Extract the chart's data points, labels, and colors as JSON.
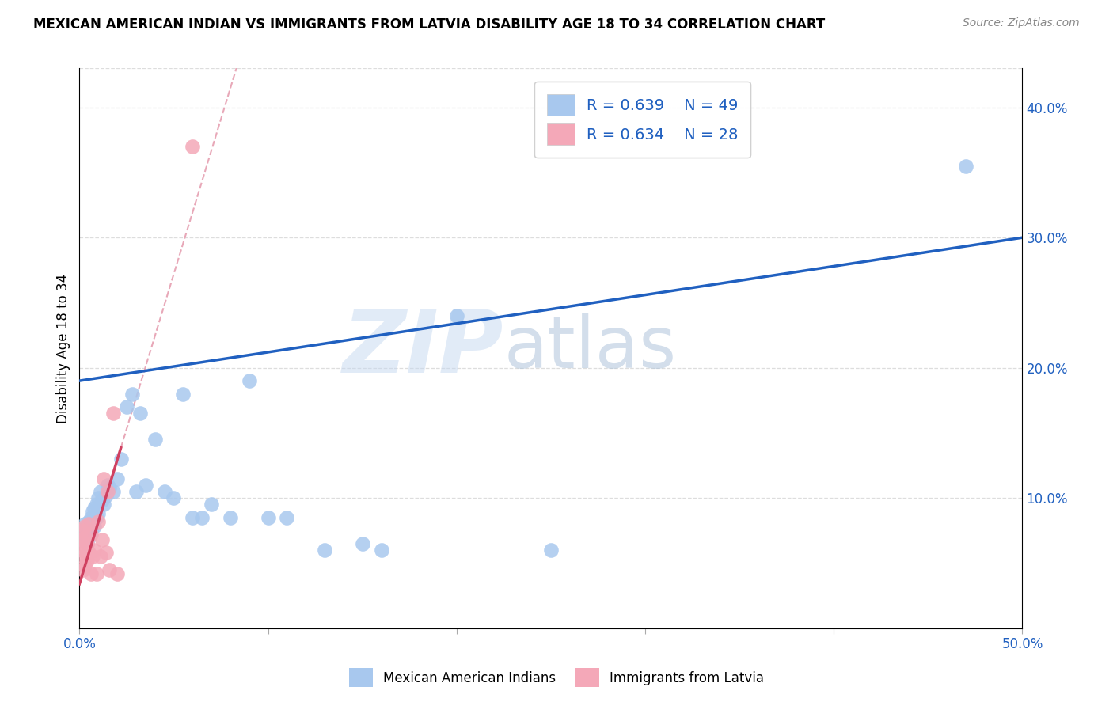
{
  "title": "MEXICAN AMERICAN INDIAN VS IMMIGRANTS FROM LATVIA DISABILITY AGE 18 TO 34 CORRELATION CHART",
  "source": "Source: ZipAtlas.com",
  "ylabel": "Disability Age 18 to 34",
  "xlim": [
    0.0,
    0.5
  ],
  "ylim": [
    0.0,
    0.43
  ],
  "xticks": [
    0.0,
    0.1,
    0.2,
    0.3,
    0.4,
    0.5
  ],
  "yticks": [
    0.1,
    0.2,
    0.3,
    0.4
  ],
  "xtick_labels": [
    "0.0%",
    "",
    "",
    "",
    "",
    "50.0%"
  ],
  "ytick_labels_right": [
    "10.0%",
    "20.0%",
    "30.0%",
    "40.0%"
  ],
  "blue_R": "0.639",
  "blue_N": "49",
  "pink_R": "0.634",
  "pink_N": "28",
  "blue_color": "#A8C8EE",
  "pink_color": "#F4A8B8",
  "blue_line_color": "#2060C0",
  "pink_line_color": "#D04060",
  "pink_dash_color": "#E8A8B8",
  "legend_text_color": "#2060C0",
  "watermark_zip": "ZIP",
  "watermark_atlas": "atlas",
  "blue_x": [
    0.001,
    0.002,
    0.003,
    0.003,
    0.004,
    0.004,
    0.005,
    0.005,
    0.006,
    0.006,
    0.007,
    0.007,
    0.008,
    0.008,
    0.009,
    0.009,
    0.01,
    0.01,
    0.011,
    0.012,
    0.013,
    0.014,
    0.015,
    0.016,
    0.018,
    0.02,
    0.022,
    0.025,
    0.028,
    0.03,
    0.032,
    0.035,
    0.04,
    0.045,
    0.05,
    0.055,
    0.06,
    0.065,
    0.07,
    0.08,
    0.09,
    0.1,
    0.11,
    0.13,
    0.15,
    0.16,
    0.2,
    0.25,
    0.47
  ],
  "blue_y": [
    0.075,
    0.068,
    0.08,
    0.072,
    0.078,
    0.065,
    0.082,
    0.07,
    0.075,
    0.085,
    0.08,
    0.09,
    0.078,
    0.092,
    0.085,
    0.095,
    0.088,
    0.1,
    0.105,
    0.098,
    0.095,
    0.102,
    0.11,
    0.108,
    0.105,
    0.115,
    0.13,
    0.17,
    0.18,
    0.105,
    0.165,
    0.11,
    0.145,
    0.105,
    0.1,
    0.18,
    0.085,
    0.085,
    0.095,
    0.085,
    0.19,
    0.085,
    0.085,
    0.06,
    0.065,
    0.06,
    0.24,
    0.06,
    0.355
  ],
  "pink_x": [
    0.001,
    0.001,
    0.001,
    0.002,
    0.002,
    0.002,
    0.003,
    0.003,
    0.003,
    0.004,
    0.004,
    0.005,
    0.005,
    0.006,
    0.006,
    0.007,
    0.008,
    0.009,
    0.01,
    0.011,
    0.012,
    0.013,
    0.014,
    0.015,
    0.016,
    0.018,
    0.02,
    0.06
  ],
  "pink_y": [
    0.06,
    0.068,
    0.075,
    0.045,
    0.055,
    0.062,
    0.048,
    0.07,
    0.078,
    0.052,
    0.065,
    0.058,
    0.08,
    0.042,
    0.072,
    0.055,
    0.06,
    0.042,
    0.082,
    0.055,
    0.068,
    0.115,
    0.058,
    0.105,
    0.045,
    0.165,
    0.042,
    0.37
  ],
  "blue_line_start_y": 0.19,
  "blue_line_end_y": 0.3,
  "background_color": "#FFFFFF",
  "grid_color": "#DDDDDD"
}
